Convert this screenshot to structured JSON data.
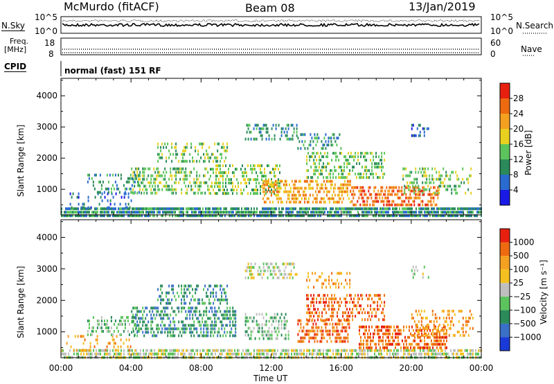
{
  "header": {
    "station": "McMurdo (fitACF)",
    "beam": "Beam 08",
    "date": "13/Jan/2019"
  },
  "top_panels": {
    "nsky_label": "N.Sky",
    "nsky_ticks": [
      "10^5",
      "10^0"
    ],
    "nsearch_label": "N.Search",
    "nsearch_ticks": [
      "10^5",
      "10^0"
    ],
    "freq_label_line1": "Freq.",
    "freq_label_line2": "[MHz]",
    "freq_ticks": [
      "18",
      "8"
    ],
    "nave_label": "Nave",
    "nave_ticks": [
      "60",
      "0"
    ],
    "cpid_label": "CPID",
    "cpid_value": "normal (fast) 151 RF"
  },
  "x_axis": {
    "label": "Time UT",
    "ticks": [
      "00:00",
      "04:00",
      "08:00",
      "12:00",
      "16:00",
      "20:00",
      "00:00"
    ]
  },
  "chart_data": [
    {
      "type": "heatmap",
      "name": "power",
      "ylabel": "Slant Range [km]",
      "y_ticks": [
        1000,
        2000,
        3000,
        4000
      ],
      "ylim": [
        180,
        4560
      ],
      "xlim_hours": [
        0,
        24
      ],
      "colorbar_label": "Power [dB]",
      "colorbar_ticks": [
        "4",
        "8",
        "12",
        "16",
        "20",
        "24",
        "28"
      ],
      "colorbar_colors": [
        "#1a1ae6",
        "#2a6bd0",
        "#2a8a5a",
        "#5cc45c",
        "#e8d020",
        "#f4a020",
        "#ee6a10",
        "#e82010"
      ],
      "scatter_regions": [
        {
          "t0": 0.0,
          "t1": 24.0,
          "r0": 180,
          "r1": 420,
          "level": 2,
          "density": 0.85
        },
        {
          "t0": 0.5,
          "t1": 4.0,
          "r0": 420,
          "r1": 900,
          "level": 1,
          "density": 0.25
        },
        {
          "t0": 1.5,
          "t1": 4.5,
          "r0": 900,
          "r1": 1500,
          "level": 2,
          "density": 0.3
        },
        {
          "t0": 4.0,
          "t1": 8.5,
          "r0": 900,
          "r1": 1700,
          "level": 3,
          "density": 0.45
        },
        {
          "t0": 5.5,
          "t1": 9.5,
          "r0": 1900,
          "r1": 2500,
          "level": 3,
          "density": 0.35
        },
        {
          "t0": 8.5,
          "t1": 12.5,
          "r0": 800,
          "r1": 1800,
          "level": 3,
          "density": 0.45
        },
        {
          "t0": 10.5,
          "t1": 13.5,
          "r0": 2600,
          "r1": 3100,
          "level": 2,
          "density": 0.4
        },
        {
          "t0": 11.5,
          "t1": 16.5,
          "r0": 600,
          "r1": 1300,
          "level": 5,
          "density": 0.55
        },
        {
          "t0": 13.5,
          "t1": 16.0,
          "r0": 2300,
          "r1": 2800,
          "level": 2,
          "density": 0.35
        },
        {
          "t0": 14.0,
          "t1": 18.5,
          "r0": 1400,
          "r1": 2200,
          "level": 3,
          "density": 0.4
        },
        {
          "t0": 16.5,
          "t1": 21.5,
          "r0": 500,
          "r1": 1100,
          "level": 6,
          "density": 0.55
        },
        {
          "t0": 19.5,
          "t1": 23.5,
          "r0": 900,
          "r1": 1700,
          "level": 3,
          "density": 0.35
        },
        {
          "t0": 20.0,
          "t1": 21.0,
          "r0": 2700,
          "r1": 3100,
          "level": 1,
          "density": 0.3
        }
      ]
    },
    {
      "type": "heatmap",
      "name": "velocity",
      "ylabel": "Slant Range [km]",
      "y_ticks": [
        1000,
        2000,
        3000,
        4000
      ],
      "ylim": [
        180,
        4560
      ],
      "xlim_hours": [
        0,
        24
      ],
      "colorbar_label": "Velocity [m s⁻¹]",
      "colorbar_ticks": [
        "1000",
        "500",
        "100",
        "25",
        "−25",
        "−100",
        "−500",
        "−1000"
      ],
      "colorbar_colors": [
        "#1a3ad8",
        "#3a70c8",
        "#2a8a5a",
        "#5cc45c",
        "#bfbfbf",
        "#f4c020",
        "#f4a020",
        "#ee6a10",
        "#e82010"
      ],
      "scatter_regions": [
        {
          "t0": 0.0,
          "t1": 24.0,
          "r0": 180,
          "r1": 450,
          "level": 4,
          "density": 0.7
        },
        {
          "t0": 0.3,
          "t1": 4.0,
          "r0": 450,
          "r1": 900,
          "level": 6,
          "density": 0.2
        },
        {
          "t0": 1.5,
          "t1": 4.5,
          "r0": 900,
          "r1": 1500,
          "level": 3,
          "density": 0.35
        },
        {
          "t0": 4.0,
          "t1": 10.0,
          "r0": 900,
          "r1": 1800,
          "level": 2,
          "density": 0.5
        },
        {
          "t0": 5.5,
          "t1": 9.5,
          "r0": 1900,
          "r1": 2500,
          "level": 2,
          "density": 0.35
        },
        {
          "t0": 10.5,
          "t1": 13.5,
          "r0": 2700,
          "r1": 3200,
          "level": 4,
          "density": 0.4
        },
        {
          "t0": 10.5,
          "t1": 13.0,
          "r0": 800,
          "r1": 1600,
          "level": 3,
          "density": 0.45
        },
        {
          "t0": 13.5,
          "t1": 16.5,
          "r0": 700,
          "r1": 1400,
          "level": 7,
          "density": 0.55
        },
        {
          "t0": 14.0,
          "t1": 18.5,
          "r0": 1400,
          "r1": 2200,
          "level": 7,
          "density": 0.4
        },
        {
          "t0": 14.0,
          "t1": 16.5,
          "r0": 2400,
          "r1": 2900,
          "level": 6,
          "density": 0.3
        },
        {
          "t0": 17.0,
          "t1": 22.0,
          "r0": 500,
          "r1": 1200,
          "level": 7,
          "density": 0.55
        },
        {
          "t0": 20.0,
          "t1": 23.5,
          "r0": 900,
          "r1": 1700,
          "level": 6,
          "density": 0.35
        },
        {
          "t0": 20.0,
          "t1": 21.0,
          "r0": 2700,
          "r1": 3100,
          "level": 4,
          "density": 0.3
        }
      ]
    }
  ]
}
